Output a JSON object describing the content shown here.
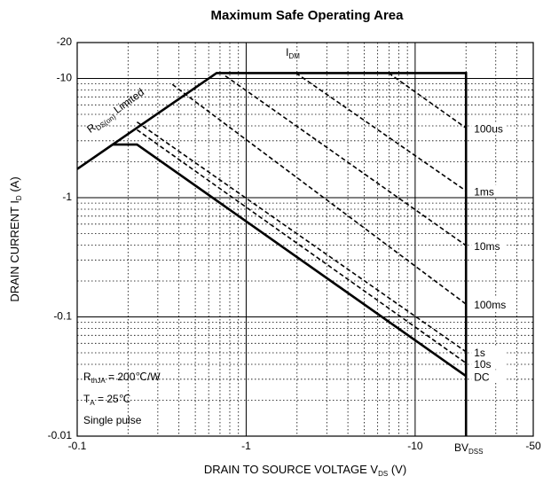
{
  "chart_data": {
    "type": "line",
    "title": "Maximum Safe Operating Area",
    "x_label": [
      {
        "text": "DRAIN TO SOURCE VOLTAGE   V"
      },
      {
        "text": "DS",
        "sub": true
      },
      {
        "text": "  (V)"
      }
    ],
    "y_label": [
      {
        "text": "DRAIN CURRENT    I"
      },
      {
        "text": "D",
        "sub": true
      },
      {
        "text": "  (A)"
      }
    ],
    "log_x": true,
    "log_y": true,
    "grid": true,
    "xlim": [
      -0.1,
      -50
    ],
    "ylim": [
      -0.01,
      -20
    ],
    "xticks": [
      -0.1,
      -1,
      -10,
      -50
    ],
    "yticks": [
      -0.01,
      -0.1,
      -1,
      -10,
      -20
    ],
    "series": [
      {
        "color": "#000000",
        "style": "solid",
        "x": [
          -0.1,
          -0.668,
          -20,
          -20
        ],
        "values": [
          -1.74,
          -11.1,
          -11.1,
          -0.01
        ]
      },
      {
        "name": "DC",
        "color": "#000000",
        "style": "solid",
        "x": [
          -0.162,
          -0.226,
          -20
        ],
        "values": [
          -2.79,
          -2.79,
          -0.0319
        ]
      },
      {
        "name": "10s",
        "color": "#000000",
        "style": "dashed",
        "x": [
          -0.226,
          -20
        ],
        "values": [
          -3.71,
          -0.041
        ]
      },
      {
        "name": "1s",
        "color": "#000000",
        "style": "dashed",
        "x": [
          -0.226,
          -20
        ],
        "values": [
          -4.31,
          -0.051
        ]
      },
      {
        "name": "100ms",
        "color": "#000000",
        "style": "dashed",
        "x": [
          -0.366,
          -20
        ],
        "values": [
          -8.9,
          -0.128
        ]
      },
      {
        "name": "10ms",
        "color": "#000000",
        "style": "dashed",
        "x": [
          -0.753,
          -20
        ],
        "values": [
          -10.5,
          -0.397
        ]
      },
      {
        "name": "1ms",
        "color": "#000000",
        "style": "dashed",
        "x": [
          -1.97,
          -20
        ],
        "values": [
          -11.1,
          -1.14
        ]
      },
      {
        "name": "100us",
        "color": "#000000",
        "style": "dashed",
        "x": [
          -6.97,
          -20
        ],
        "values": [
          -11.1,
          -3.84
        ]
      }
    ],
    "annotations": [
      {
        "parts": [
          {
            "text": "I"
          },
          {
            "text": "DM",
            "sub": true
          }
        ]
      },
      {
        "parts": [
          {
            "text": "R"
          },
          {
            "text": "DS(on)",
            "sub": true
          },
          {
            "text": " Limited"
          }
        ]
      },
      {
        "parts": [
          {
            "text": "BV"
          },
          {
            "text": "DSS",
            "sub": true
          }
        ]
      },
      {
        "parts": [
          {
            "text": "R"
          },
          {
            "text": "thJA",
            "sub": true
          },
          {
            "text": " = 200℃/W"
          }
        ]
      },
      {
        "parts": [
          {
            "text": "T"
          },
          {
            "text": "A",
            "sub": true
          },
          {
            "text": " = 25℃"
          }
        ]
      },
      {
        "parts": [
          {
            "text": "Single pulse"
          }
        ]
      }
    ]
  }
}
